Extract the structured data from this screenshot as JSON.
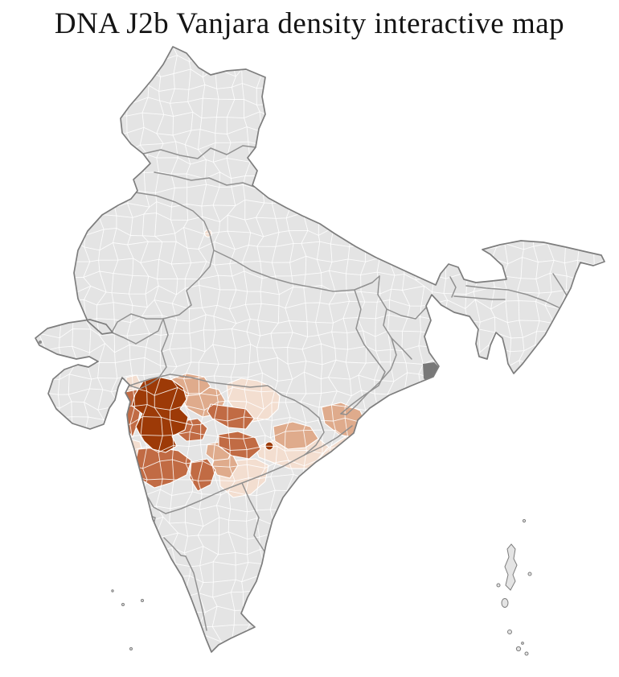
{
  "header": {
    "title": "DNA J2b Vanjara density interactive map"
  },
  "palette": {
    "background": "#ffffff",
    "land": "#e4e4e4",
    "district_line": "#ffffff",
    "state_line": "#8d8d8d",
    "coast_line": "#7d7d7d",
    "delta_patch": "#6f6f6f",
    "density_levels": [
      {
        "level": "very-low",
        "color": "#f3ded0"
      },
      {
        "level": "low",
        "color": "#dfab8c"
      },
      {
        "level": "medium",
        "color": "#c16b44"
      },
      {
        "level": "high",
        "color": "#9d3a07"
      }
    ]
  },
  "map": {
    "kind": "district choropleth",
    "highlight_cluster": "west-central Deccan districts",
    "levels_shown": 4
  }
}
